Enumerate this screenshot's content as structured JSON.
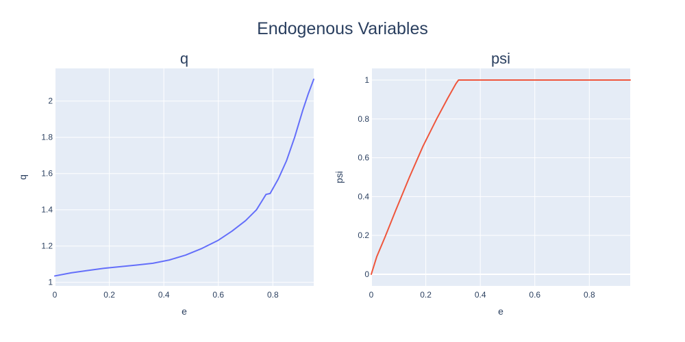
{
  "figure": {
    "title": "Endogenous Variables",
    "colors": {
      "plot_bg": "#e5ecf6",
      "grid": "#ffffff",
      "text": "#2a3f5f",
      "series_q": "#636efa",
      "series_psi": "#ef553b"
    }
  },
  "chart_data": [
    {
      "type": "line",
      "title": "q",
      "xlabel": "e",
      "ylabel": "q",
      "xlim": [
        0,
        0.95
      ],
      "ylim": [
        0.98,
        2.18
      ],
      "grid": true,
      "x_ticks": [
        0,
        0.2,
        0.4,
        0.6,
        0.8
      ],
      "x_tick_labels": [
        "0",
        "0.2",
        "0.4",
        "0.6",
        "0.8"
      ],
      "y_ticks": [
        1,
        1.2,
        1.4,
        1.6,
        1.8,
        2
      ],
      "y_tick_labels": [
        "1",
        "1.2",
        "1.4",
        "1.6",
        "1.8",
        "2"
      ],
      "series": [
        {
          "color": "#636efa",
          "x": [
            0,
            0.06,
            0.12,
            0.18,
            0.24,
            0.3,
            0.36,
            0.42,
            0.48,
            0.54,
            0.6,
            0.65,
            0.7,
            0.74,
            0.775,
            0.79,
            0.82,
            0.85,
            0.88,
            0.91,
            0.93,
            0.95
          ],
          "y": [
            1.035,
            1.052,
            1.065,
            1.077,
            1.086,
            1.095,
            1.105,
            1.123,
            1.15,
            1.187,
            1.232,
            1.282,
            1.34,
            1.4,
            1.485,
            1.49,
            1.57,
            1.67,
            1.8,
            1.95,
            2.04,
            2.12
          ]
        }
      ]
    },
    {
      "type": "line",
      "title": "psi",
      "xlabel": "e",
      "ylabel": "psi",
      "xlim": [
        0,
        0.95
      ],
      "ylim": [
        -0.06,
        1.06
      ],
      "grid": true,
      "x_ticks": [
        0,
        0.2,
        0.4,
        0.6,
        0.8
      ],
      "x_tick_labels": [
        "0",
        "0.2",
        "0.4",
        "0.6",
        "0.8"
      ],
      "y_ticks": [
        0,
        0.2,
        0.4,
        0.6,
        0.8,
        1
      ],
      "y_tick_labels": [
        "0",
        "0.2",
        "0.4",
        "0.6",
        "0.8",
        "1"
      ],
      "series": [
        {
          "color": "#ef553b",
          "x": [
            0,
            0.02,
            0.05,
            0.09,
            0.14,
            0.19,
            0.24,
            0.28,
            0.31,
            0.32,
            0.33,
            0.5,
            0.7,
            0.95
          ],
          "y": [
            0,
            0.09,
            0.19,
            0.33,
            0.5,
            0.66,
            0.8,
            0.905,
            0.98,
            1.0,
            1.0,
            1.0,
            1.0,
            1.0
          ]
        }
      ]
    }
  ]
}
